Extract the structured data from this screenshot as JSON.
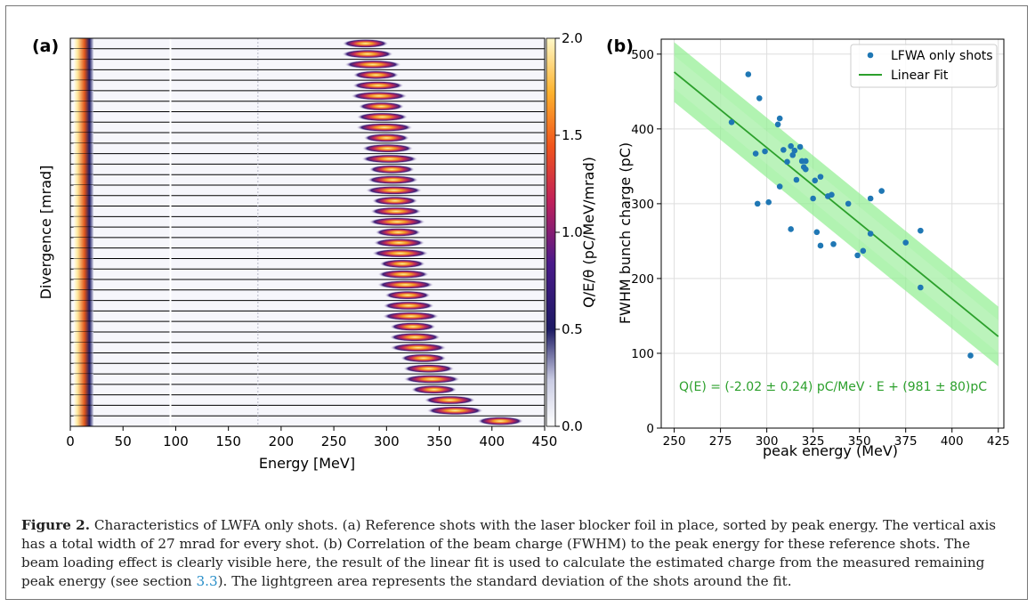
{
  "panel_a": {
    "label": "(a)",
    "xlabel": "Energy [MeV]",
    "ylabel": "Divergence [mrad]",
    "x_ticks": [
      "0",
      "50",
      "100",
      "150",
      "200",
      "250",
      "300",
      "350",
      "400",
      "450"
    ],
    "colorbar_label": "Q/E/θ (pC/MeV/mrad)",
    "colorbar_ticks": [
      "0.0",
      "0.5",
      "1.0",
      "1.5",
      "2.0"
    ]
  },
  "panel_b": {
    "label": "(b)",
    "xlabel": "peak energy (MeV)",
    "ylabel": "FWHM bunch charge (pC)",
    "x_ticks": [
      "250",
      "275",
      "300",
      "325",
      "350",
      "375",
      "400",
      "425"
    ],
    "y_ticks": [
      "0",
      "100",
      "200",
      "300",
      "400",
      "500"
    ],
    "legend": [
      "LFWA only shots",
      "Linear Fit"
    ],
    "fit_label": "Q(E) = (-2.02 ± 0.24) pC/MeV · E + (981 ± 80)pC"
  },
  "caption": {
    "label": "Figure 2.",
    "text_1": "Characteristics of LWFA only shots. (a) Reference shots with the laser blocker foil in place, sorted by peak energy. The vertical axis has a total width of 27 mrad for every shot. (b) Correlation of the beam charge (FWHM) to the peak energy for these reference shots. The beam loading effect is clearly visible here, the result of the linear fit is used to calculate the estimated charge from the measured remaining peak energy (see section ",
    "ref": "3.3",
    "text_2": "). The lightgreen area represents the standard deviation of the shots around the fit."
  },
  "colors": {
    "points": "#1f77b4",
    "fit": "#2ca02c",
    "band": "#90ee90",
    "band_inner": "#c8f5c8"
  },
  "chart_data": [
    {
      "type": "heatmap",
      "description_axes": "waterfall of stacked shots",
      "x_range": [
        0,
        450
      ],
      "color_range": [
        0,
        2.0
      ],
      "colormap": "white-navy-purple-red-orange-yellow",
      "n_shots": 37,
      "shot_width_mrad": 27,
      "peak_energies_MeV": [
        280,
        282,
        287,
        290,
        292,
        293,
        295,
        296,
        298,
        300,
        301,
        303,
        305,
        306,
        307,
        308,
        309,
        310,
        311,
        312,
        313,
        315,
        316,
        318,
        320,
        321,
        323,
        325,
        327,
        330,
        335,
        340,
        343,
        345,
        360,
        365,
        408
      ]
    },
    {
      "type": "scatter",
      "xlim": [
        243,
        428
      ],
      "ylim": [
        0,
        520
      ],
      "grid": true,
      "legend_position": "top-right",
      "series": [
        {
          "name": "LFWA only shots",
          "points": [
            [
              281,
              409
            ],
            [
              290,
              473
            ],
            [
              294,
              367
            ],
            [
              296,
              441
            ],
            [
              299,
              370
            ],
            [
              295,
              300
            ],
            [
              301,
              302
            ],
            [
              306,
              406
            ],
            [
              307,
              414
            ],
            [
              307,
              323
            ],
            [
              309,
              372
            ],
            [
              311,
              356
            ],
            [
              313,
              377
            ],
            [
              314,
              365
            ],
            [
              313,
              266
            ],
            [
              315,
              371
            ],
            [
              316,
              332
            ],
            [
              318,
              376
            ],
            [
              319,
              357
            ],
            [
              320,
              349
            ],
            [
              321,
              346
            ],
            [
              321,
              357
            ],
            [
              325,
              307
            ],
            [
              326,
              331
            ],
            [
              327,
              262
            ],
            [
              329,
              336
            ],
            [
              329,
              244
            ],
            [
              333,
              310
            ],
            [
              335,
              312
            ],
            [
              336,
              246
            ],
            [
              344,
              300
            ],
            [
              349,
              231
            ],
            [
              352,
              237
            ],
            [
              356,
              307
            ],
            [
              356,
              260
            ],
            [
              362,
              317
            ],
            [
              375,
              248
            ],
            [
              383,
              264
            ],
            [
              383,
              188
            ],
            [
              410,
              97
            ]
          ]
        },
        {
          "name": "Linear Fit",
          "slope": -2.02,
          "intercept": 981,
          "x_range": [
            250,
            425
          ],
          "std_band": 40
        }
      ]
    }
  ]
}
